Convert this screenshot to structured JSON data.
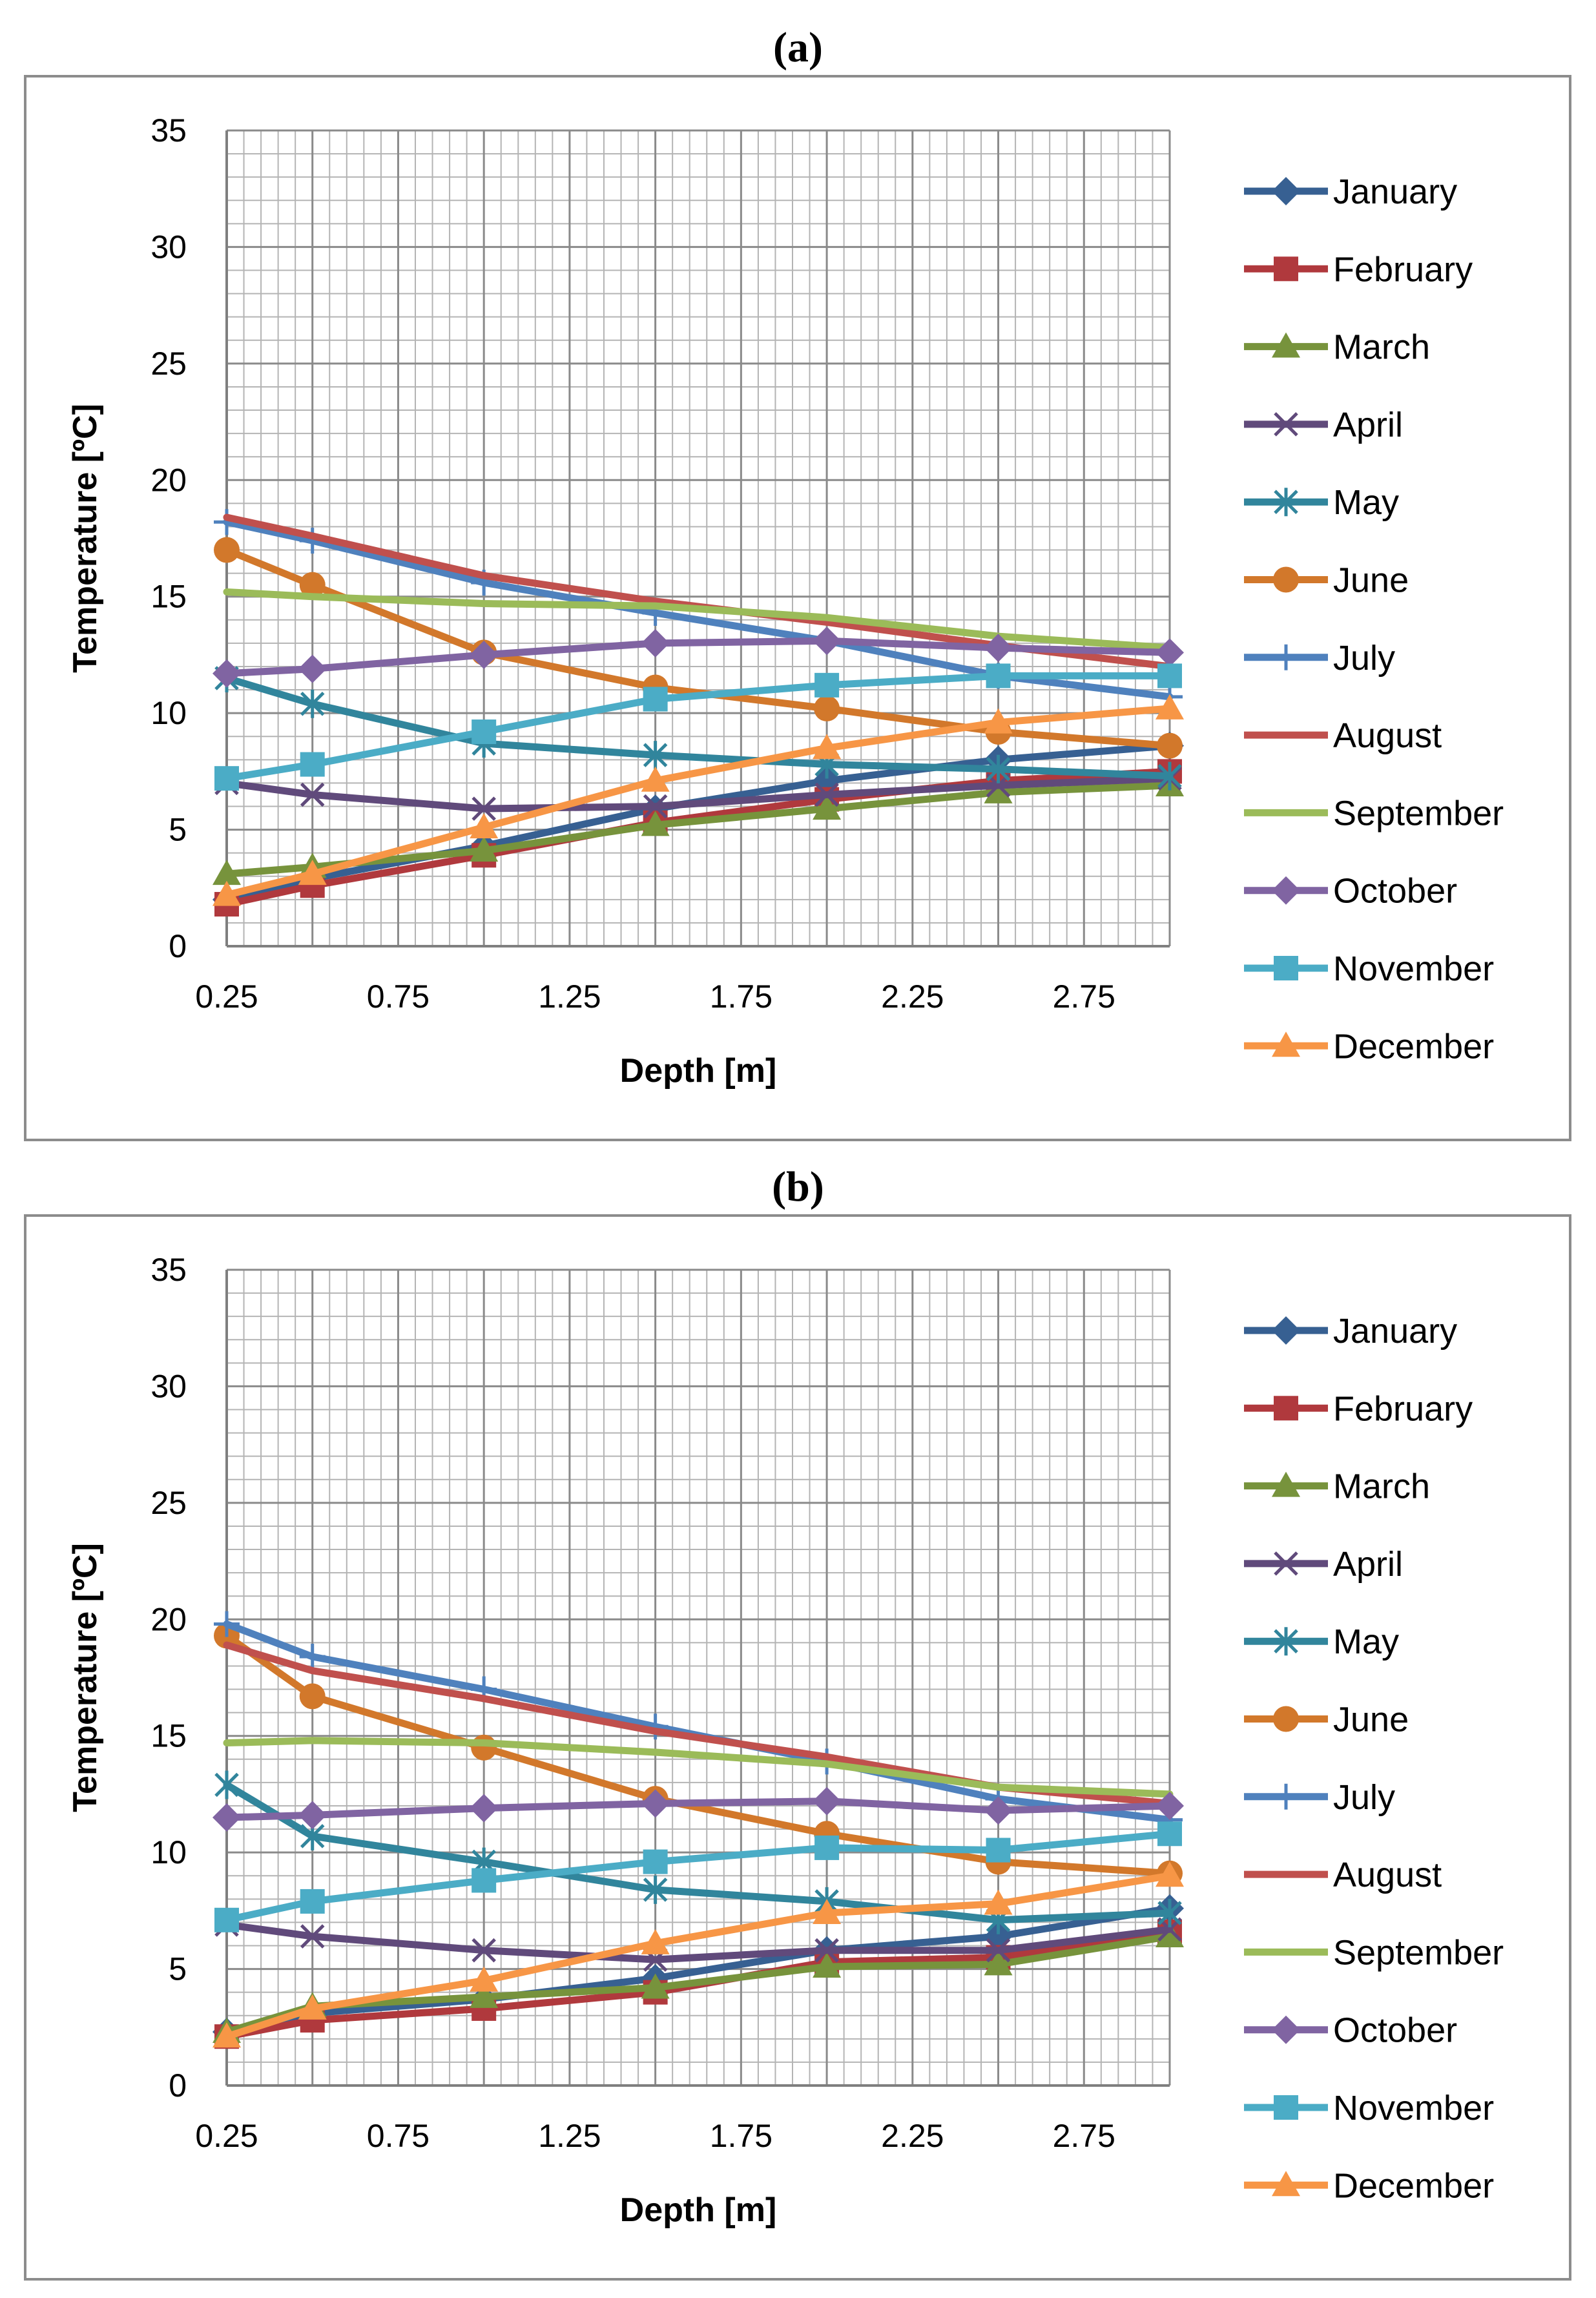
{
  "chart_data": [
    {
      "panel_label": "(a)",
      "type": "line",
      "xlabel": "Depth [m]",
      "ylabel": "Temperature [ºC]",
      "xlim": [
        0.25,
        3.0
      ],
      "ylim": [
        0,
        35
      ],
      "x_tick_labels": [
        "0.25",
        "0.75",
        "1.25",
        "1.75",
        "2.25",
        "2.75"
      ],
      "y_tick_labels": [
        "0",
        "5",
        "10",
        "15",
        "20",
        "25",
        "30",
        "35"
      ],
      "legend_position": "right",
      "x": [
        0.25,
        0.5,
        1.0,
        1.5,
        2.0,
        2.5,
        3.0
      ],
      "series": [
        {
          "name": "January",
          "color": "#376092",
          "marker": "diamond",
          "values": [
            2.0,
            2.9,
            4.3,
            5.9,
            7.1,
            8.0,
            8.6
          ]
        },
        {
          "name": "February",
          "color": "#b0393d",
          "marker": "square",
          "values": [
            1.8,
            2.6,
            3.9,
            5.3,
            6.3,
            7.1,
            7.5
          ]
        },
        {
          "name": "March",
          "color": "#77933c",
          "marker": "triangle",
          "values": [
            3.1,
            3.4,
            4.1,
            5.2,
            5.9,
            6.6,
            6.9
          ]
        },
        {
          "name": "April",
          "color": "#604a7b",
          "marker": "x",
          "values": [
            7.0,
            6.5,
            5.9,
            6.0,
            6.5,
            6.9,
            7.2
          ]
        },
        {
          "name": "May",
          "color": "#31859c",
          "marker": "star",
          "values": [
            11.5,
            10.4,
            8.7,
            8.2,
            7.8,
            7.6,
            7.3
          ]
        },
        {
          "name": "June",
          "color": "#d2782b",
          "marker": "circle",
          "values": [
            17.0,
            15.5,
            12.6,
            11.1,
            10.2,
            9.2,
            8.6
          ]
        },
        {
          "name": "July",
          "color": "#4f81bd",
          "marker": "plus",
          "values": [
            18.2,
            17.4,
            15.6,
            14.3,
            13.1,
            11.6,
            10.7
          ]
        },
        {
          "name": "August",
          "color": "#c0504d",
          "marker": "none",
          "values": [
            18.4,
            17.6,
            15.9,
            14.8,
            13.9,
            12.9,
            12.0
          ]
        },
        {
          "name": "September",
          "color": "#9bbb59",
          "marker": "none",
          "values": [
            15.2,
            15.0,
            14.7,
            14.6,
            14.1,
            13.3,
            12.8
          ]
        },
        {
          "name": "October",
          "color": "#8064a2",
          "marker": "diamond",
          "values": [
            11.7,
            11.9,
            12.5,
            13.0,
            13.1,
            12.8,
            12.6
          ]
        },
        {
          "name": "November",
          "color": "#4bacc6",
          "marker": "square",
          "values": [
            7.2,
            7.8,
            9.2,
            10.6,
            11.2,
            11.6,
            11.6
          ]
        },
        {
          "name": "December",
          "color": "#f79646",
          "marker": "triangle",
          "values": [
            2.2,
            3.1,
            5.1,
            7.1,
            8.5,
            9.6,
            10.2
          ]
        }
      ]
    },
    {
      "panel_label": "(b)",
      "type": "line",
      "xlabel": "Depth [m]",
      "ylabel": "Temperature [ºC]",
      "xlim": [
        0.25,
        3.0
      ],
      "ylim": [
        0,
        35
      ],
      "x_tick_labels": [
        "0.25",
        "0.75",
        "1.25",
        "1.75",
        "2.25",
        "2.75"
      ],
      "y_tick_labels": [
        "0",
        "5",
        "10",
        "15",
        "20",
        "25",
        "30",
        "35"
      ],
      "legend_position": "right",
      "x": [
        0.25,
        0.5,
        1.0,
        1.5,
        2.0,
        2.5,
        3.0
      ],
      "series": [
        {
          "name": "January",
          "color": "#376092",
          "marker": "diamond",
          "values": [
            2.3,
            3.1,
            3.7,
            4.6,
            5.8,
            6.4,
            7.6
          ]
        },
        {
          "name": "February",
          "color": "#b0393d",
          "marker": "square",
          "values": [
            2.1,
            2.8,
            3.3,
            4.0,
            5.3,
            5.5,
            6.6
          ]
        },
        {
          "name": "March",
          "color": "#77933c",
          "marker": "triangle",
          "values": [
            2.3,
            3.4,
            3.8,
            4.2,
            5.1,
            5.2,
            6.4
          ]
        },
        {
          "name": "April",
          "color": "#604a7b",
          "marker": "x",
          "values": [
            6.9,
            6.4,
            5.8,
            5.4,
            5.8,
            5.8,
            6.7
          ]
        },
        {
          "name": "May",
          "color": "#31859c",
          "marker": "star",
          "values": [
            12.9,
            10.7,
            9.6,
            8.4,
            7.9,
            7.1,
            7.4
          ]
        },
        {
          "name": "June",
          "color": "#d2782b",
          "marker": "circle",
          "values": [
            19.3,
            16.7,
            14.5,
            12.3,
            10.8,
            9.6,
            9.1
          ]
        },
        {
          "name": "July",
          "color": "#4f81bd",
          "marker": "plus",
          "values": [
            19.8,
            18.4,
            17.0,
            15.4,
            13.9,
            12.3,
            11.4
          ]
        },
        {
          "name": "August",
          "color": "#c0504d",
          "marker": "none",
          "values": [
            18.9,
            17.8,
            16.6,
            15.2,
            14.1,
            12.8,
            12.1
          ]
        },
        {
          "name": "September",
          "color": "#9bbb59",
          "marker": "none",
          "values": [
            14.7,
            14.8,
            14.7,
            14.3,
            13.8,
            12.8,
            12.5
          ]
        },
        {
          "name": "October",
          "color": "#8064a2",
          "marker": "diamond",
          "values": [
            11.5,
            11.6,
            11.9,
            12.1,
            12.2,
            11.8,
            12.0
          ]
        },
        {
          "name": "November",
          "color": "#4bacc6",
          "marker": "square",
          "values": [
            7.1,
            7.9,
            8.8,
            9.6,
            10.2,
            10.1,
            10.8
          ]
        },
        {
          "name": "December",
          "color": "#f79646",
          "marker": "triangle",
          "values": [
            2.1,
            3.3,
            4.5,
            6.1,
            7.4,
            7.8,
            9.0
          ]
        }
      ]
    }
  ]
}
